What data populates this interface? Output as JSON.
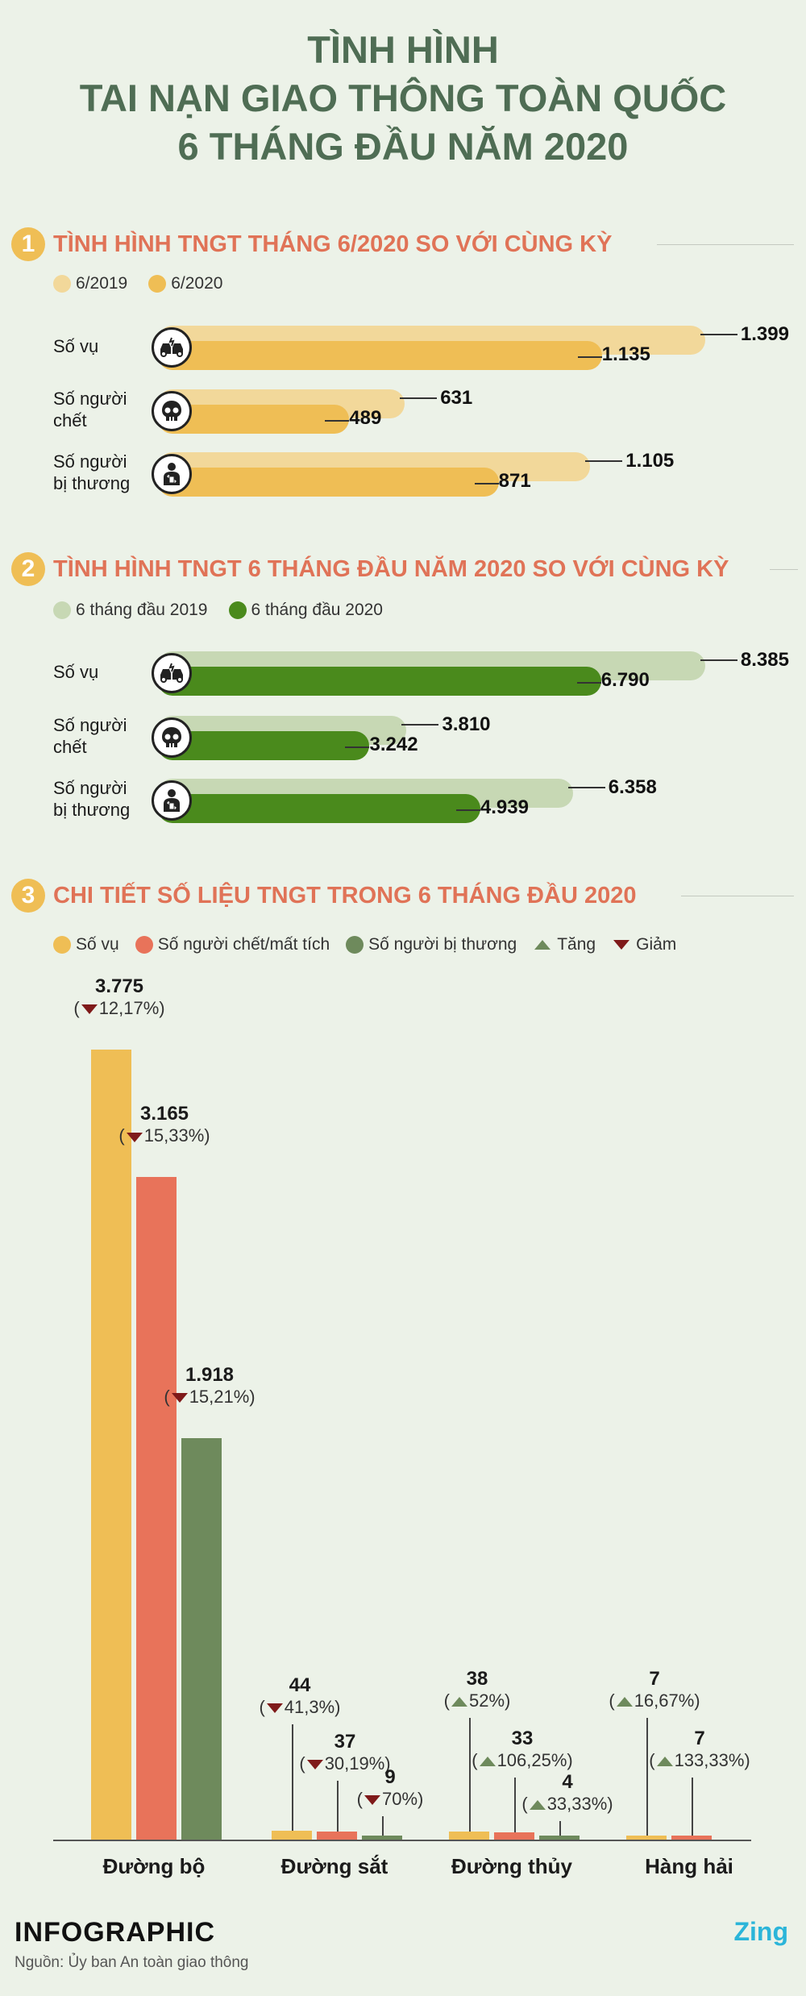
{
  "title": [
    "TÌNH HÌNH",
    "TAI NẠN GIAO THÔNG TOÀN QUỐC",
    "6 THÁNG ĐẦU NĂM 2020"
  ],
  "section1": {
    "num": "1",
    "title": "TÌNH HÌNH TNGT THÁNG 6/2020 SO VỚI CÙNG KỲ",
    "legend": [
      "6/2019",
      "6/2020"
    ],
    "colors": [
      "#f2d89a",
      "#efbe55"
    ]
  },
  "section2": {
    "num": "2",
    "title": "TÌNH HÌNH TNGT 6 THÁNG ĐẦU NĂM 2020 SO VỚI CÙNG KỲ",
    "legend": [
      "6 tháng đầu 2019",
      "6 tháng đầu 2020"
    ],
    "colors": [
      "#c7d8b4",
      "#4a8a1c"
    ]
  },
  "section3": {
    "num": "3",
    "title": "CHI TIẾT SỐ LIỆU TNGT TRONG 6 THÁNG ĐẦU 2020",
    "legend": [
      "Số vụ",
      "Số người chết/mất tích",
      "Số người bị thương",
      "Tăng",
      "Giảm"
    ],
    "colors": [
      "#efbe55",
      "#e8735a",
      "#6e8a5c"
    ]
  },
  "row_labels": [
    [
      "Số vụ"
    ],
    [
      "Số người",
      "chết"
    ],
    [
      "Số người",
      "bị thương"
    ]
  ],
  "icons": [
    "car-crash-icon",
    "skull-icon",
    "injured-person-icon"
  ],
  "chart_data": [
    {
      "type": "bar",
      "orientation": "horizontal",
      "categories": [
        "Số vụ",
        "Số người chết",
        "Số người bị thương"
      ],
      "series": [
        {
          "name": "6/2019",
          "values": [
            1399,
            631,
            1105
          ],
          "labels": [
            "1.399",
            "631",
            "1.105"
          ]
        },
        {
          "name": "6/2020",
          "values": [
            1135,
            489,
            871
          ],
          "labels": [
            "1.135",
            "489",
            "871"
          ]
        }
      ]
    },
    {
      "type": "bar",
      "orientation": "horizontal",
      "categories": [
        "Số vụ",
        "Số người chết",
        "Số người bị thương"
      ],
      "series": [
        {
          "name": "6 tháng đầu 2019",
          "values": [
            8385,
            3810,
            6358
          ],
          "labels": [
            "8.385",
            "3.810",
            "6.358"
          ]
        },
        {
          "name": "6 tháng đầu 2020",
          "values": [
            6790,
            3242,
            4939
          ],
          "labels": [
            "6.790",
            "3.242",
            "4.939"
          ]
        }
      ]
    },
    {
      "type": "bar",
      "categories": [
        "Đường bộ",
        "Đường sắt",
        "Đường thủy",
        "Hàng hải"
      ],
      "series": [
        {
          "name": "Số vụ",
          "values": [
            3775,
            44,
            38,
            7
          ],
          "labels": [
            "3.775",
            "44",
            "38",
            "7"
          ],
          "changes": [
            "12,17%",
            "41,3%",
            "52%",
            "16,67%"
          ],
          "trend": [
            "down",
            "down",
            "up",
            "up"
          ]
        },
        {
          "name": "Số người chết/mất tích",
          "values": [
            3165,
            37,
            33,
            7
          ],
          "labels": [
            "3.165",
            "37",
            "33",
            "7"
          ],
          "changes": [
            "15,33%",
            "30,19%",
            "106,25%",
            "133,33%"
          ],
          "trend": [
            "down",
            "down",
            "up",
            "up"
          ]
        },
        {
          "name": "Số người bị thương",
          "values": [
            1918,
            9,
            4,
            0
          ],
          "labels": [
            "1.918",
            "9",
            "4",
            ""
          ],
          "changes": [
            "15,21%",
            "70%",
            "33,33%",
            ""
          ],
          "trend": [
            "down",
            "down",
            "up",
            ""
          ]
        }
      ]
    }
  ],
  "footer": {
    "brand": "INFOGRAPHIC",
    "source": "Nguồn: Ủy ban An toàn giao thông",
    "logo": "Zing"
  }
}
